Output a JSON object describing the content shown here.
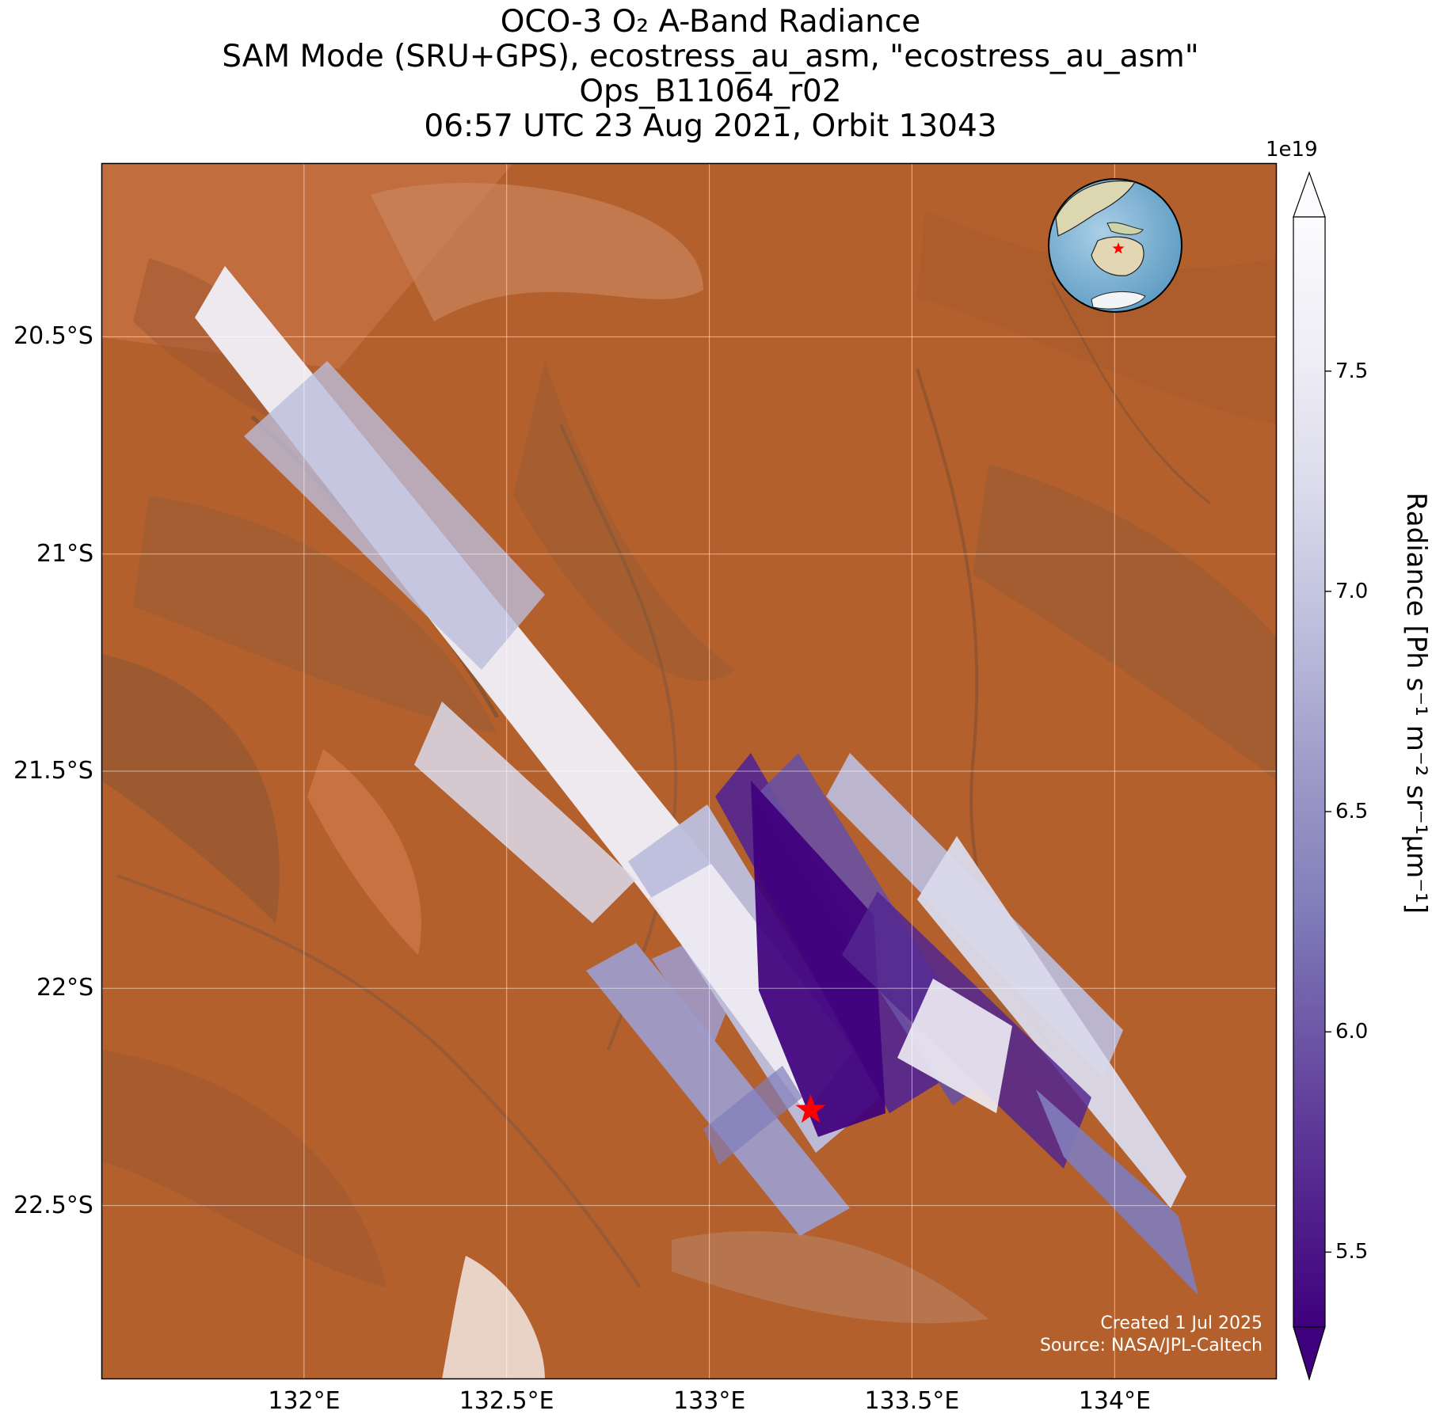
{
  "titles": [
    "OCO-3 O₂ A-Band Radiance",
    "SAM Mode (SRU+GPS), ecostress_au_asm, \"ecostress_au_asm\"",
    "Ops_B11064_r02",
    "06:57 UTC 23 Aug 2021, Orbit 13043"
  ],
  "map": {
    "lon_ticks": [
      "132°E",
      "132.5°E",
      "133°E",
      "133.5°E",
      "134°E"
    ],
    "lat_ticks": [
      "20.5°S",
      "21°S",
      "21.5°S",
      "22°S",
      "22.5°S"
    ],
    "lon_values": [
      132.0,
      132.5,
      133.0,
      133.5,
      134.0
    ],
    "lat_values": [
      -20.5,
      -21.0,
      -21.5,
      -22.0,
      -22.5
    ],
    "lon_range": [
      131.5,
      134.4
    ],
    "lat_range": [
      -22.9,
      -20.1
    ],
    "grid": true,
    "target_marker": {
      "lon": 133.25,
      "lat": -22.28,
      "symbol": "star",
      "color": "#ff0000"
    },
    "credit_lines": [
      "Created 1 Jul 2025",
      "Source: NASA/JPL-Caltech"
    ]
  },
  "colorbar": {
    "scale_label": "1e19",
    "ticks": [
      "5.5",
      "6.0",
      "6.5",
      "7.0",
      "7.5"
    ],
    "tick_values": [
      5.5,
      6.0,
      6.5,
      7.0,
      7.5
    ],
    "range": [
      5.33,
      7.85
    ],
    "extend": "both",
    "label": "Radiance [Ph s⁻¹ m⁻² sr⁻¹μm⁻¹]",
    "colors": [
      "#3f007d",
      "#54278f",
      "#6a51a3",
      "#807dba",
      "#9e9ac8",
      "#bcbddc",
      "#dadaeb",
      "#efedf5",
      "#fcfbfd"
    ]
  },
  "inset": {
    "type": "globe",
    "marker_color": "#ff0000"
  }
}
